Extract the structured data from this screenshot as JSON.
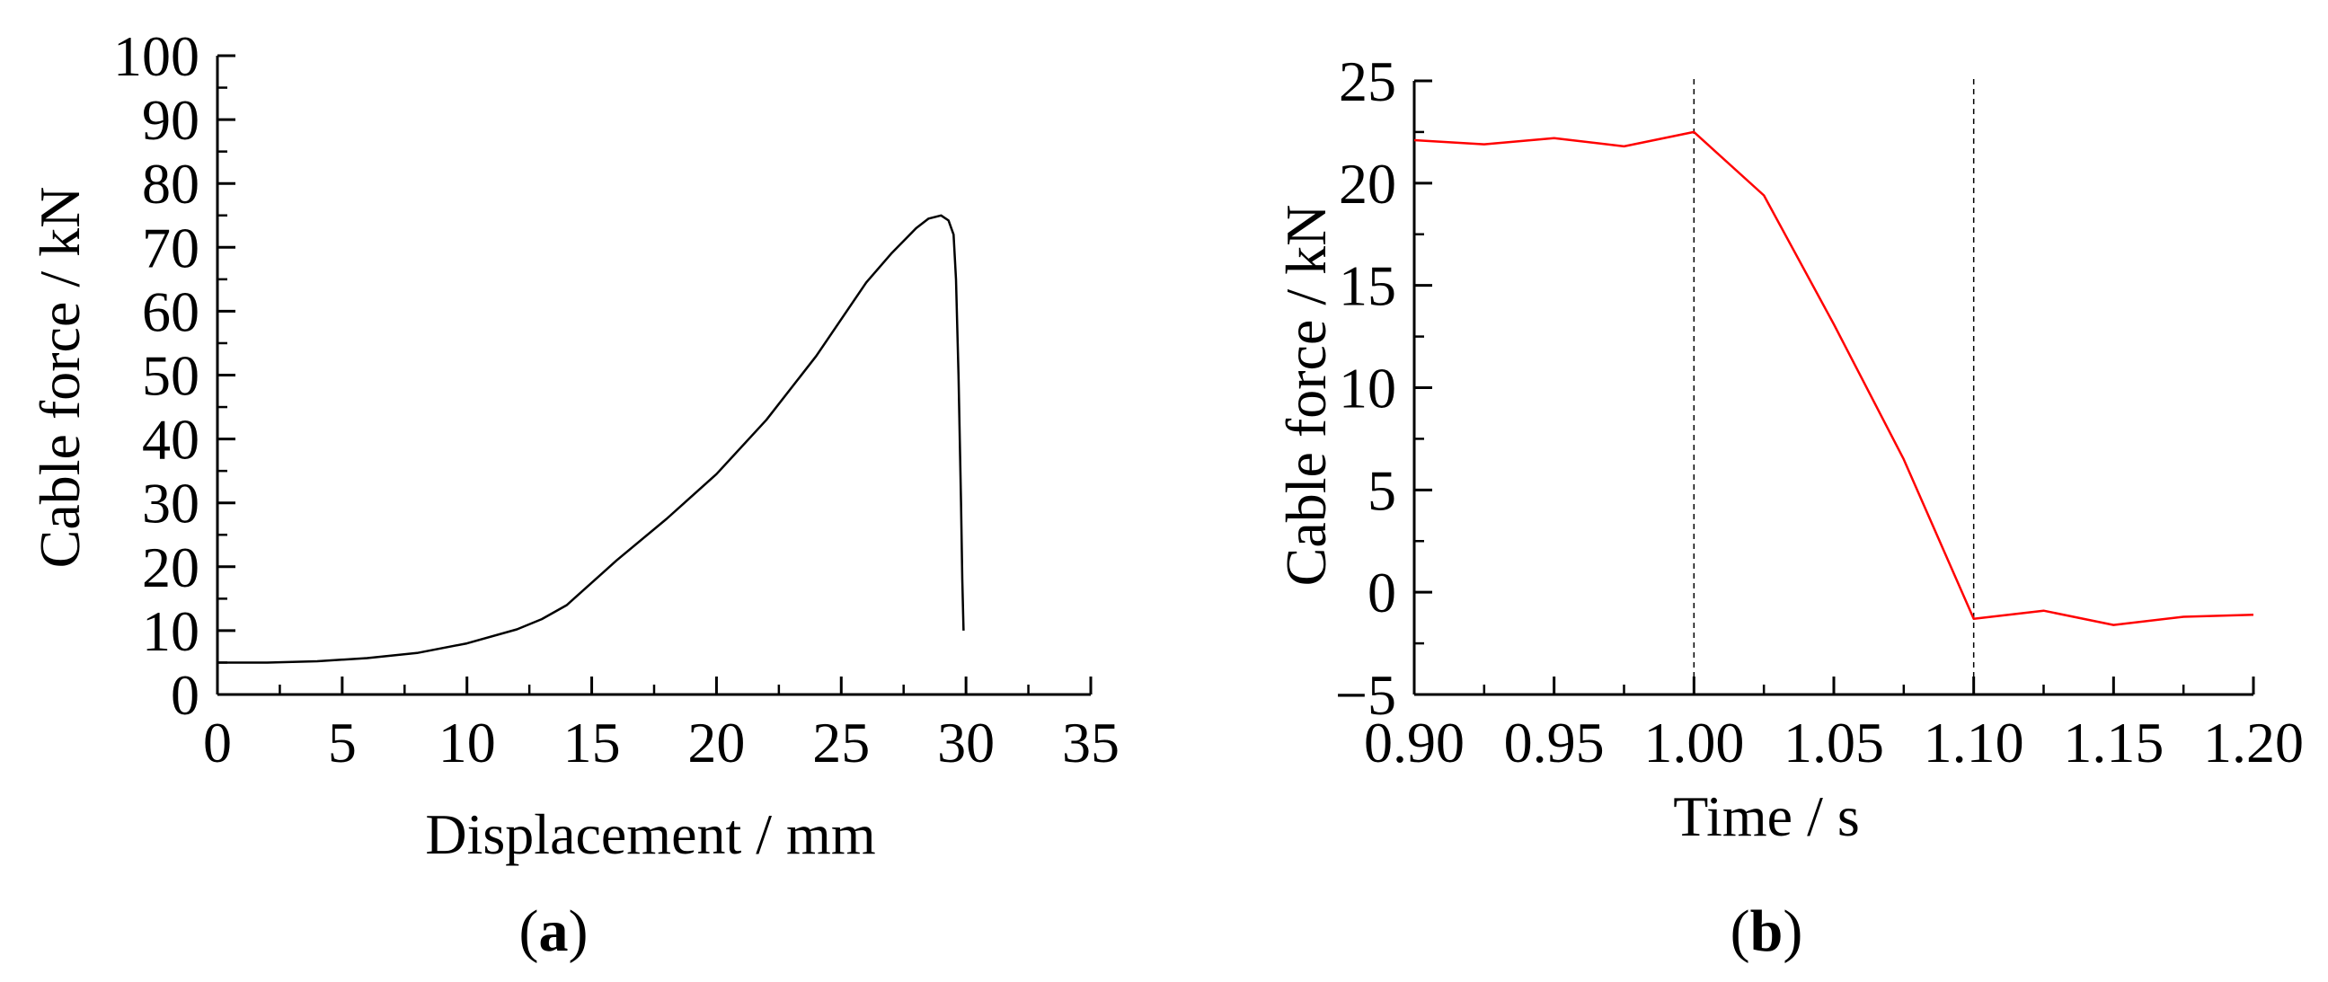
{
  "chart_data": [
    {
      "panel": "a",
      "panel_label": "a",
      "type": "line",
      "xlabel": "Displacement / mm",
      "ylabel": "Cable force / kN",
      "xlim": [
        0,
        35
      ],
      "ylim": [
        0,
        100
      ],
      "x_ticks": [
        0,
        5,
        10,
        15,
        20,
        25,
        30,
        35
      ],
      "y_ticks": [
        0,
        10,
        20,
        30,
        40,
        50,
        60,
        70,
        80,
        90,
        100
      ],
      "grid": false,
      "line_color": "#000000",
      "series": [
        {
          "x": [
            0,
            2,
            4,
            6,
            8,
            10,
            12,
            13,
            14,
            15,
            16,
            18,
            20,
            22,
            24,
            26,
            27,
            28,
            28.5,
            29,
            29.3,
            29.5,
            29.6,
            29.7,
            29.8,
            29.85,
            29.9
          ],
          "y": [
            5,
            5,
            5.2,
            5.7,
            6.5,
            8,
            10.2,
            11.8,
            14,
            17.5,
            21,
            27.5,
            34.5,
            43,
            53,
            64.5,
            69,
            73,
            74.5,
            75,
            74.2,
            72,
            65,
            50,
            30,
            18,
            10
          ]
        }
      ]
    },
    {
      "panel": "b",
      "panel_label": "b",
      "type": "line",
      "xlabel": "Time / s",
      "ylabel": "Cable force / kN",
      "xlim": [
        0.9,
        1.2
      ],
      "ylim": [
        -5,
        25
      ],
      "x_ticks": [
        "0.90",
        "0.95",
        "1.00",
        "1.05",
        "1.10",
        "1.15",
        "1.20"
      ],
      "x_tick_values": [
        0.9,
        0.95,
        1.0,
        1.05,
        1.1,
        1.15,
        1.2
      ],
      "y_ticks": [
        -5,
        0,
        5,
        10,
        15,
        20,
        25
      ],
      "grid": false,
      "line_color": "#ff0000",
      "reference_lines_x": [
        1.0,
        1.1
      ],
      "series": [
        {
          "x": [
            0.9,
            0.925,
            0.95,
            0.975,
            1.0,
            1.025,
            1.05,
            1.075,
            1.1,
            1.125,
            1.15,
            1.175,
            1.2
          ],
          "y": [
            22.1,
            21.9,
            22.2,
            21.8,
            22.5,
            19.4,
            13.1,
            6.5,
            -1.3,
            -0.9,
            -1.6,
            -1.2,
            -1.1
          ]
        }
      ]
    }
  ]
}
